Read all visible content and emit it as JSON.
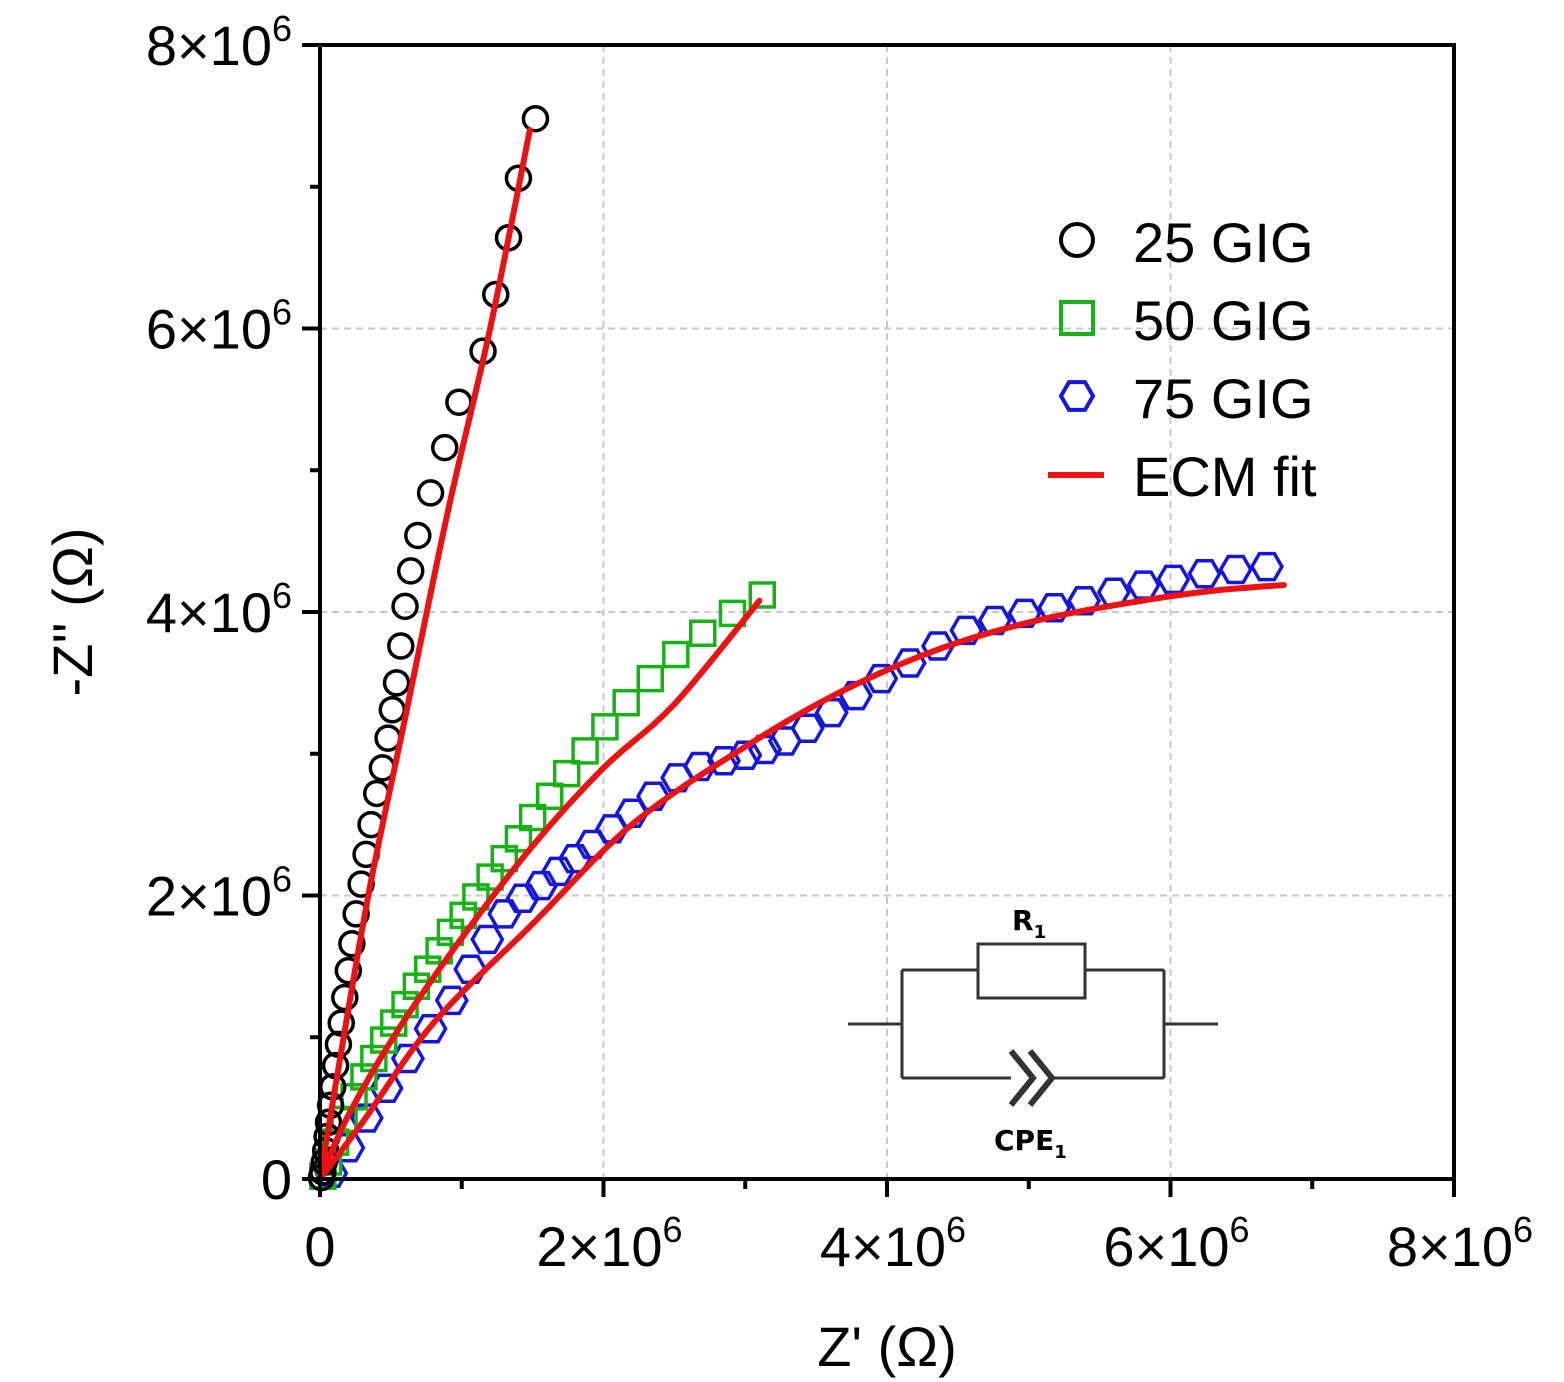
{
  "chart_data": {
    "type": "scatter",
    "title": "",
    "xlabel": "Z' (Ω)",
    "ylabel": "-Z'' (Ω)",
    "xlim": [
      0,
      8000000
    ],
    "ylim": [
      0,
      8000000
    ],
    "grid": true,
    "legend_position": "top-right",
    "x_ticks": [
      {
        "value": 0,
        "base": "0",
        "exp": ""
      },
      {
        "value": 2000000,
        "base": "2×10",
        "exp": "6"
      },
      {
        "value": 4000000,
        "base": "4×10",
        "exp": "6"
      },
      {
        "value": 6000000,
        "base": "6×10",
        "exp": "6"
      },
      {
        "value": 8000000,
        "base": "8×10",
        "exp": "6"
      }
    ],
    "y_ticks": [
      {
        "value": 0,
        "base": "0",
        "exp": ""
      },
      {
        "value": 2000000,
        "base": "2×10",
        "exp": "6"
      },
      {
        "value": 4000000,
        "base": "4×10",
        "exp": "6"
      },
      {
        "value": 6000000,
        "base": "6×10",
        "exp": "6"
      },
      {
        "value": 8000000,
        "base": "8×10",
        "exp": "6"
      }
    ],
    "series": [
      {
        "name": "25 GIG",
        "marker": "circle",
        "color": "#000000",
        "points": [
          [
            10000,
            10000
          ],
          [
            20000,
            50000
          ],
          [
            30000,
            120000
          ],
          [
            40000,
            200000
          ],
          [
            50000,
            300000
          ],
          [
            60000,
            400000
          ],
          [
            75000,
            520000
          ],
          [
            90000,
            650000
          ],
          [
            110000,
            800000
          ],
          [
            130000,
            950000
          ],
          [
            150000,
            1100000
          ],
          [
            175000,
            1280000
          ],
          [
            200000,
            1470000
          ],
          [
            225000,
            1660000
          ],
          [
            255000,
            1870000
          ],
          [
            290000,
            2080000
          ],
          [
            325000,
            2290000
          ],
          [
            360000,
            2500000
          ],
          [
            400000,
            2720000
          ],
          [
            440000,
            2900000
          ],
          [
            480000,
            3110000
          ],
          [
            510000,
            3310000
          ],
          [
            540000,
            3500000
          ],
          [
            570000,
            3760000
          ],
          [
            600000,
            4040000
          ],
          [
            640000,
            4290000
          ],
          [
            690000,
            4540000
          ],
          [
            780000,
            4840000
          ],
          [
            880000,
            5160000
          ],
          [
            980000,
            5480000
          ],
          [
            1150000,
            5840000
          ],
          [
            1240000,
            6240000
          ],
          [
            1330000,
            6640000
          ],
          [
            1400000,
            7060000
          ],
          [
            1520000,
            7480000
          ]
        ]
      },
      {
        "name": "50 GIG",
        "marker": "square",
        "color": "#16b316",
        "points": [
          [
            20000,
            20000
          ],
          [
            60000,
            120000
          ],
          [
            110000,
            260000
          ],
          [
            170000,
            420000
          ],
          [
            240000,
            580000
          ],
          [
            310000,
            720000
          ],
          [
            380000,
            850000
          ],
          [
            450000,
            980000
          ],
          [
            520000,
            1100000
          ],
          [
            600000,
            1230000
          ],
          [
            680000,
            1360000
          ],
          [
            760000,
            1480000
          ],
          [
            840000,
            1610000
          ],
          [
            920000,
            1740000
          ],
          [
            1010000,
            1860000
          ],
          [
            1100000,
            1990000
          ],
          [
            1200000,
            2130000
          ],
          [
            1300000,
            2260000
          ],
          [
            1400000,
            2400000
          ],
          [
            1500000,
            2550000
          ],
          [
            1620000,
            2700000
          ],
          [
            1740000,
            2860000
          ],
          [
            1870000,
            3020000
          ],
          [
            2010000,
            3190000
          ],
          [
            2160000,
            3360000
          ],
          [
            2330000,
            3530000
          ],
          [
            2510000,
            3700000
          ],
          [
            2700000,
            3850000
          ],
          [
            2910000,
            3990000
          ],
          [
            3120000,
            4120000
          ]
        ]
      },
      {
        "name": "75 GIG",
        "marker": "hexagon",
        "color": "#1515e0",
        "points": [
          [
            80000,
            40000
          ],
          [
            200000,
            220000
          ],
          [
            330000,
            430000
          ],
          [
            470000,
            640000
          ],
          [
            620000,
            850000
          ],
          [
            780000,
            1060000
          ],
          [
            930000,
            1260000
          ],
          [
            1060000,
            1480000
          ],
          [
            1180000,
            1690000
          ],
          [
            1300000,
            1870000
          ],
          [
            1430000,
            1980000
          ],
          [
            1560000,
            2070000
          ],
          [
            1680000,
            2170000
          ],
          [
            1800000,
            2260000
          ],
          [
            1920000,
            2360000
          ],
          [
            2060000,
            2470000
          ],
          [
            2200000,
            2580000
          ],
          [
            2350000,
            2700000
          ],
          [
            2520000,
            2830000
          ],
          [
            2680000,
            2910000
          ],
          [
            2850000,
            2950000
          ],
          [
            3000000,
            2990000
          ],
          [
            3140000,
            3030000
          ],
          [
            3280000,
            3090000
          ],
          [
            3440000,
            3180000
          ],
          [
            3610000,
            3290000
          ],
          [
            3780000,
            3410000
          ],
          [
            3960000,
            3530000
          ],
          [
            4160000,
            3640000
          ],
          [
            4360000,
            3760000
          ],
          [
            4560000,
            3870000
          ],
          [
            4760000,
            3940000
          ],
          [
            4970000,
            3990000
          ],
          [
            5180000,
            4030000
          ],
          [
            5390000,
            4080000
          ],
          [
            5600000,
            4140000
          ],
          [
            5810000,
            4190000
          ],
          [
            6020000,
            4230000
          ],
          [
            6240000,
            4270000
          ],
          [
            6460000,
            4300000
          ],
          [
            6680000,
            4320000
          ]
        ]
      }
    ],
    "fit_curves": [
      {
        "name": "ECM fit",
        "color": "#ee1111",
        "points": [
          [
            0,
            0
          ],
          [
            150000,
            900000
          ],
          [
            350000,
            2050000
          ],
          [
            600000,
            3250000
          ],
          [
            900000,
            4700000
          ],
          [
            1200000,
            6000000
          ],
          [
            1480000,
            7400000
          ]
        ]
      },
      {
        "name": "ECM fit",
        "color": "#ee1111",
        "points": [
          [
            0,
            0
          ],
          [
            200000,
            450000
          ],
          [
            550000,
            1050000
          ],
          [
            1000000,
            1700000
          ],
          [
            1500000,
            2350000
          ],
          [
            2000000,
            2900000
          ],
          [
            2500000,
            3350000
          ],
          [
            3100000,
            4080000
          ]
        ]
      },
      {
        "name": "ECM fit",
        "color": "#ee1111",
        "points": [
          [
            0,
            0
          ],
          [
            300000,
            400000
          ],
          [
            800000,
            1100000
          ],
          [
            1500000,
            1800000
          ],
          [
            2200000,
            2500000
          ],
          [
            3000000,
            3050000
          ],
          [
            3700000,
            3450000
          ],
          [
            4400000,
            3750000
          ],
          [
            5100000,
            3950000
          ],
          [
            5800000,
            4080000
          ],
          [
            6300000,
            4150000
          ],
          [
            6800000,
            4190000
          ]
        ]
      }
    ],
    "legend": [
      {
        "label": "25 GIG",
        "marker": "circle",
        "color": "#000000"
      },
      {
        "label": "50 GIG",
        "marker": "square",
        "color": "#16b316"
      },
      {
        "label": "75 GIG",
        "marker": "hexagon",
        "color": "#1515e0"
      },
      {
        "label": "ECM fit",
        "marker": "line",
        "color": "#ee1111"
      }
    ],
    "inset_circuit": {
      "resistor_label": "R",
      "resistor_sub": "1",
      "cpe_label": "CPE",
      "cpe_sub": "1"
    }
  }
}
